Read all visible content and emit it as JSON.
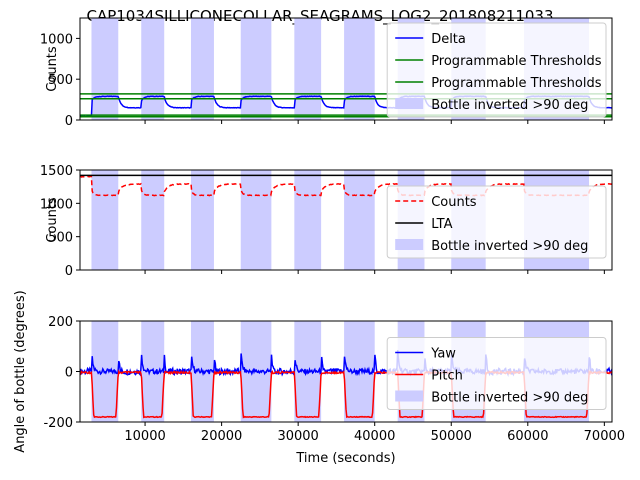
{
  "title": "CAP1034SILLICONECOLLAR_SEAGRAMS_LOG2_201808211033",
  "xlabel": "Time (seconds)",
  "colors": {
    "shade": "#ccccff",
    "blue": "#0000ff",
    "green": "#008000",
    "red": "#ff0000",
    "black": "#000000"
  },
  "inverted_intervals": [
    [
      3000,
      6500
    ],
    [
      9500,
      12500
    ],
    [
      16000,
      19000
    ],
    [
      22500,
      26500
    ],
    [
      29500,
      33000
    ],
    [
      36000,
      40000
    ],
    [
      43000,
      46500
    ],
    [
      50000,
      54500
    ],
    [
      59500,
      68000
    ]
  ],
  "chart_data": [
    {
      "type": "line",
      "ylabel": "Counts",
      "xlim": [
        1500,
        71000
      ],
      "ylim": [
        0,
        1250
      ],
      "xticks": [
        10000,
        20000,
        30000,
        40000,
        50000,
        60000,
        70000
      ],
      "yticks": [
        0,
        500,
        1000
      ],
      "show_xtick_labels": false,
      "legend_position": "top-right",
      "series": [
        {
          "name": "Delta",
          "style": "solid",
          "color": "#0000ff",
          "kind": "delta"
        },
        {
          "name": "Programmable Thresholds",
          "style": "solid",
          "color": "#008000",
          "hlines": [
            320,
            260
          ]
        },
        {
          "name": "Programmable Thresholds",
          "style": "solid",
          "color": "#008000",
          "hlines": [
            60,
            40
          ]
        },
        {
          "name": "Bottle inverted >90 deg",
          "style": "patch",
          "color": "#ccccff"
        }
      ],
      "delta_levels": {
        "out": 40,
        "in": 290,
        "dip": 150
      }
    },
    {
      "type": "line",
      "ylabel": "Counts",
      "xlim": [
        1500,
        71000
      ],
      "ylim": [
        0,
        1500
      ],
      "xticks": [
        10000,
        20000,
        30000,
        40000,
        50000,
        60000,
        70000
      ],
      "yticks": [
        0,
        500,
        1000,
        1500
      ],
      "show_xtick_labels": false,
      "legend_position": "right",
      "series": [
        {
          "name": "Counts",
          "style": "dashed",
          "color": "#ff0000",
          "kind": "counts"
        },
        {
          "name": "LTA",
          "style": "solid",
          "color": "#000000",
          "hline": 1420
        },
        {
          "name": "Bottle inverted >90 deg",
          "style": "patch",
          "color": "#ccccff"
        }
      ],
      "counts_levels": {
        "base": 1120,
        "peak": 1290,
        "start": 1400
      }
    },
    {
      "type": "line",
      "ylabel": "Angle of bottle (degrees)",
      "xlabel": "Time (seconds)",
      "xlim": [
        1500,
        71000
      ],
      "ylim": [
        -200,
        200
      ],
      "xticks": [
        10000,
        20000,
        30000,
        40000,
        50000,
        60000,
        70000
      ],
      "xtick_labels": [
        "10000",
        "20000",
        "30000",
        "40000",
        "50000",
        "60000",
        "70000"
      ],
      "yticks": [
        -200,
        0,
        200
      ],
      "show_xtick_labels": true,
      "legend_position": "right",
      "series": [
        {
          "name": "Yaw",
          "style": "solid",
          "color": "#0000ff",
          "kind": "yaw"
        },
        {
          "name": "Pitch",
          "style": "solid",
          "color": "#ff0000",
          "kind": "pitch"
        },
        {
          "name": "Bottle inverted >90 deg",
          "style": "patch",
          "color": "#ccccff"
        }
      ],
      "pitch_levels": {
        "out": 0,
        "in": -180
      },
      "yaw_levels": {
        "base": 0,
        "spike": 85,
        "neg_spike": -60
      }
    }
  ]
}
